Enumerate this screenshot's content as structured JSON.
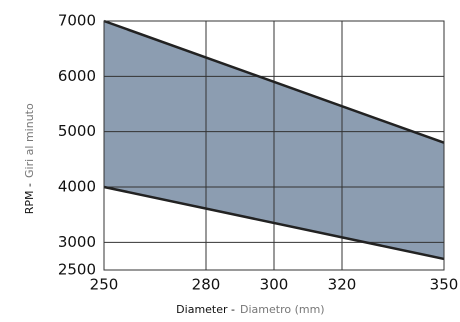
{
  "chart_data": {
    "type": "band",
    "x": [
      250,
      350
    ],
    "series": [
      {
        "color": "#222222",
        "values": [
          7000,
          4800
        ]
      },
      {
        "color": "#222222",
        "values": [
          4000,
          2700
        ]
      }
    ],
    "band_color": "#8c9db1",
    "xlim": [
      250,
      350
    ],
    "xticks": [
      250,
      280,
      300,
      320,
      350
    ],
    "ylim": [
      2500,
      7000
    ],
    "yticks": [
      2500,
      3000,
      4000,
      5000,
      6000,
      7000
    ],
    "grid": true,
    "xlabel_parts": [
      "Diameter -",
      "Diametro (mm)"
    ],
    "ylabel_parts": [
      "RPM -",
      "Giri al minuto"
    ]
  }
}
